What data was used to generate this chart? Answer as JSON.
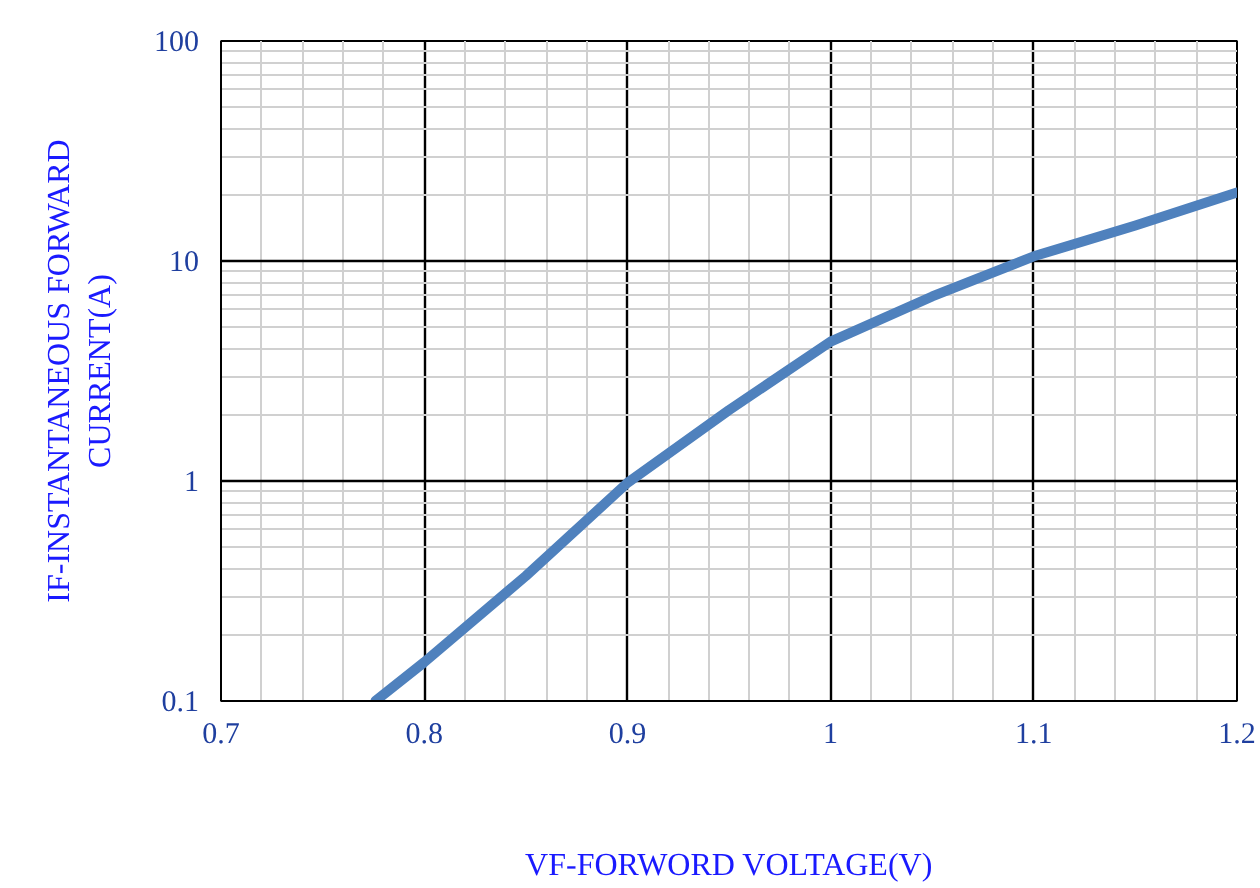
{
  "chart_data": {
    "type": "line",
    "xlabel": "VF-FORWORD VOLTAGE(V)",
    "ylabel": "IF-INSTANTANEOUS FORWARD CURRENT(A)",
    "x": [
      0.776,
      0.8,
      0.85,
      0.9,
      0.95,
      1.0,
      1.05,
      1.1,
      1.15,
      1.2
    ],
    "series": [
      {
        "color": "#4f81bd",
        "values": [
          0.1,
          0.15,
          0.37,
          0.98,
          2.1,
          4.3,
          6.9,
          10.5,
          14.5,
          20.5
        ]
      }
    ],
    "xlim": [
      0.7,
      1.2
    ],
    "xticks": [
      0.7,
      0.8,
      0.9,
      1,
      1.1,
      1.2
    ],
    "ylim": [
      0.1,
      100
    ],
    "yticks": [
      0.1,
      1,
      10,
      100
    ],
    "log": "y",
    "grid": true,
    "marker": "none",
    "line_style": "solid"
  }
}
